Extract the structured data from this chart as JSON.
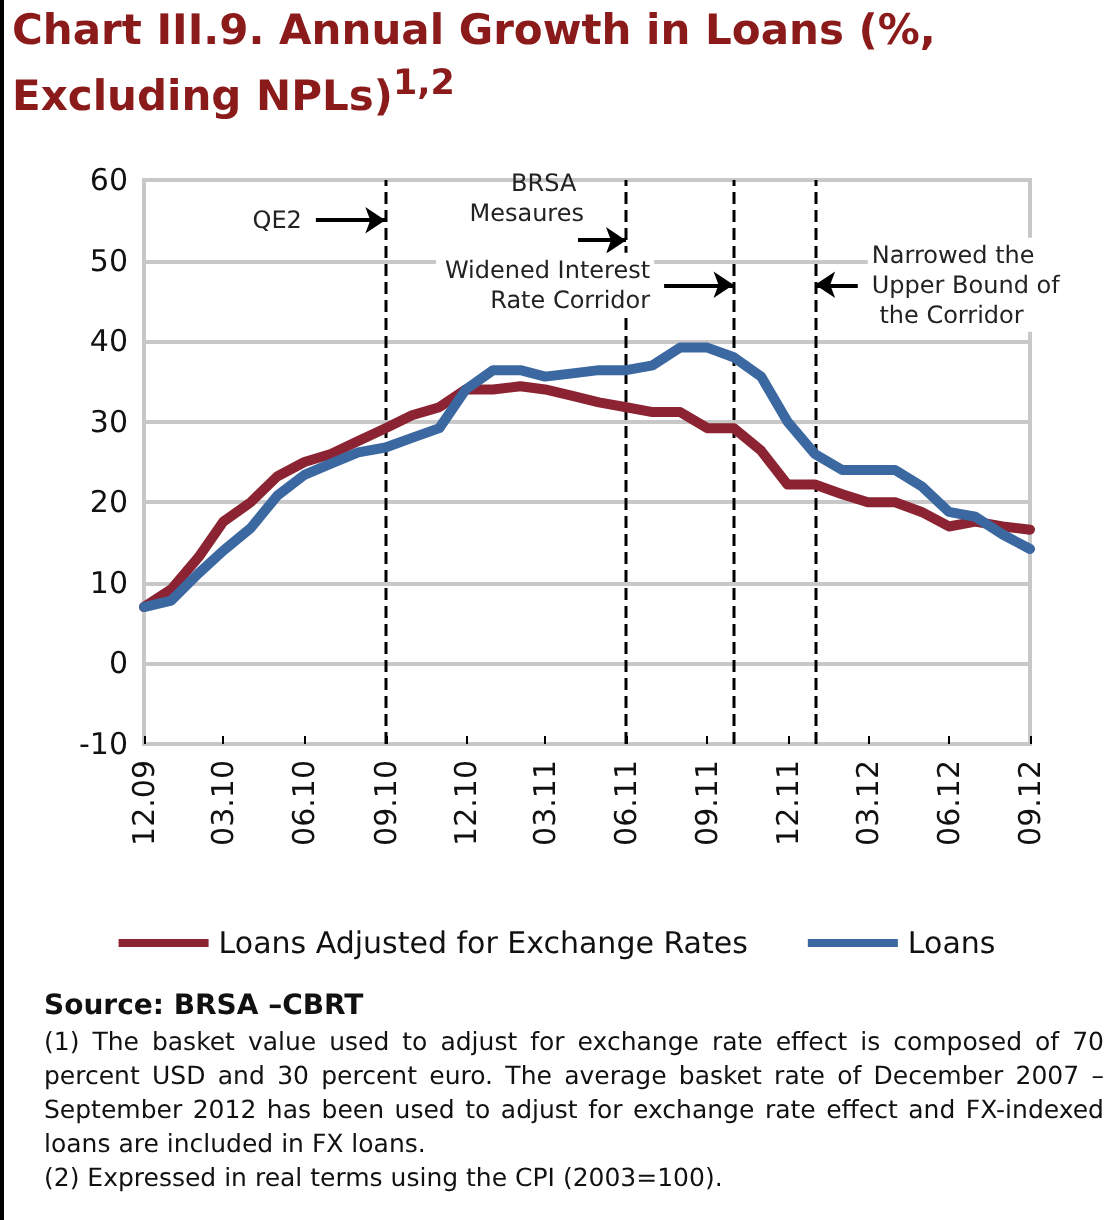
{
  "chart_data": {
    "type": "line",
    "title": "Chart III.9. Annual Growth in Loans (%, Excluding NPLs)$^{1,2}$",
    "x": [
      "2009-12",
      "2010-01",
      "2010-02",
      "2010-03",
      "2010-04",
      "2010-05",
      "2010-06",
      "2010-07",
      "2010-08",
      "2010-09",
      "2010-10",
      "2010-11",
      "2010-12",
      "2011-01",
      "2011-02",
      "2011-03",
      "2011-04",
      "2011-05",
      "2011-06",
      "2011-07",
      "2011-08",
      "2011-09",
      "2011-10",
      "2011-11",
      "2011-12",
      "2012-01",
      "2012-02",
      "2012-03",
      "2012-04",
      "2012-05",
      "2012-06",
      "2012-07",
      "2012-08",
      "2012-09"
    ],
    "series": [
      {
        "name": "Loans Adjusted for Exchange Rates",
        "color": "#8b2332",
        "values": [
          7,
          9.2,
          13.2,
          17.6,
          20,
          23.2,
          25,
          26,
          27.6,
          29.2,
          30.8,
          31.8,
          34,
          34,
          34.4,
          34,
          33.2,
          32.4,
          31.8,
          31.2,
          31.2,
          29.2,
          29.2,
          26.4,
          22.2,
          22.2,
          21,
          20,
          20,
          18.8,
          17,
          17.6,
          17,
          16.6
        ]
      },
      {
        "name": "Loans",
        "color": "#3b68a0",
        "values": [
          7,
          7.8,
          11.2,
          14,
          16.8,
          20.8,
          23.4,
          24.8,
          26.2,
          26.8,
          28,
          29.2,
          34,
          36.4,
          36.4,
          35.6,
          36,
          36.4,
          36.4,
          37,
          39.2,
          39.2,
          38,
          35.6,
          30,
          26,
          24,
          24,
          24,
          22,
          18.8,
          18.2,
          16,
          14.2
        ]
      }
    ],
    "xlim": [
      "2009-12",
      "2012-09"
    ],
    "xticks": [
      {
        "value": "2009-12",
        "label": "12.09"
      },
      {
        "value": "2010-03",
        "label": "03.10"
      },
      {
        "value": "2010-06",
        "label": "06.10"
      },
      {
        "value": "2010-09",
        "label": "09.10"
      },
      {
        "value": "2010-12",
        "label": "12.10"
      },
      {
        "value": "2011-03",
        "label": "03.11"
      },
      {
        "value": "2011-06",
        "label": "06.11"
      },
      {
        "value": "2011-09",
        "label": "09.11"
      },
      {
        "value": "2011-12",
        "label": "12.11"
      },
      {
        "value": "2012-03",
        "label": "03.12"
      },
      {
        "value": "2012-06",
        "label": "06.12"
      },
      {
        "value": "2012-09",
        "label": "09.12"
      }
    ],
    "ylim": [
      -10,
      60
    ],
    "yticks": [
      -10,
      0,
      10,
      20,
      30,
      40,
      50,
      60
    ],
    "ref_lines": [
      {
        "axis": "x",
        "value": "2010-09",
        "label": "QE2",
        "line_style": "dashed",
        "color": "#000000"
      },
      {
        "axis": "x",
        "value": "2011-06",
        "label": "BRSA Mesaures",
        "line_style": "dashed",
        "color": "#000000"
      },
      {
        "axis": "x",
        "value": "2011-10",
        "label": "Widened Interest Rate Corridor",
        "line_style": "dashed",
        "color": "#000000"
      },
      {
        "axis": "x",
        "value": "2012-01",
        "label": "Narrowed the Upper Bound of the Corridor",
        "line_style": "dashed",
        "color": "#000000"
      }
    ],
    "grid": "y",
    "legend": "bottom",
    "marker": "none",
    "line_style": "solid",
    "annotations": [
      "Source: BRSA –CBRT",
      "(1) The basket value used to adjust for exchange rate effect is composed of 70 percent USD and 30 percent euro. The average basket rate of December 2007 – September 2012 has been used to adjust for exchange rate effect and FX-indexed loans are included in FX loans.",
      "(2) Expressed in real terms using the CPI (2003=100)."
    ]
  }
}
